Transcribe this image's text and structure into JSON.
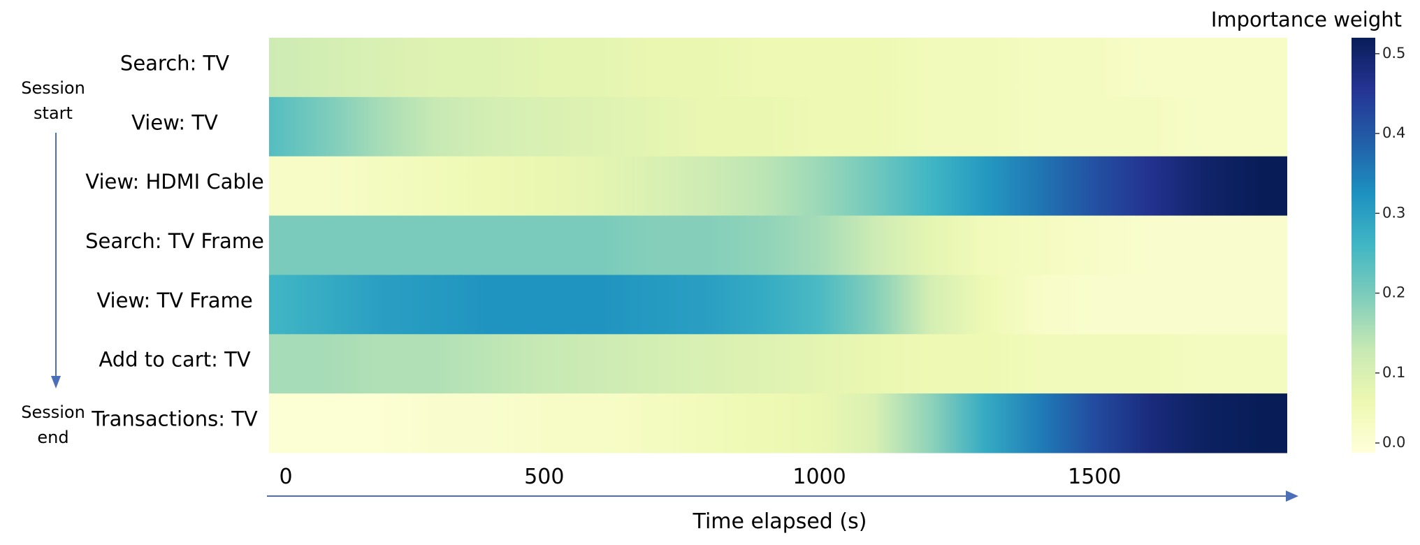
{
  "chart_data": {
    "type": "heatmap",
    "rows": [
      "Search: TV",
      "View: TV",
      "View: HDMI Cable",
      "Search: TV Frame",
      "View: TV Frame",
      "Add to cart: TV",
      "Transactions: TV"
    ],
    "x": [
      0,
      100,
      200,
      300,
      400,
      500,
      600,
      700,
      800,
      900,
      1000,
      1100,
      1200,
      1300,
      1400,
      1500,
      1600,
      1700,
      1800
    ],
    "xlim": [
      0,
      1850
    ],
    "x_ticks": [
      "0",
      "500",
      "1000",
      "1500"
    ],
    "xlabel": "Time elapsed (s)",
    "values": [
      [
        0.12,
        0.11,
        0.1,
        0.09,
        0.09,
        0.08,
        0.08,
        0.07,
        0.07,
        0.06,
        0.06,
        0.06,
        0.05,
        0.05,
        0.04,
        0.04,
        0.03,
        0.03,
        0.03
      ],
      [
        0.24,
        0.2,
        0.16,
        0.13,
        0.11,
        0.1,
        0.09,
        0.08,
        0.07,
        0.07,
        0.06,
        0.06,
        0.05,
        0.05,
        0.04,
        0.04,
        0.04,
        0.03,
        0.03
      ],
      [
        0.03,
        0.03,
        0.04,
        0.05,
        0.06,
        0.07,
        0.08,
        0.1,
        0.12,
        0.14,
        0.17,
        0.21,
        0.26,
        0.31,
        0.36,
        0.41,
        0.46,
        0.5,
        0.52
      ],
      [
        0.2,
        0.2,
        0.2,
        0.2,
        0.2,
        0.2,
        0.2,
        0.19,
        0.19,
        0.18,
        0.16,
        0.12,
        0.08,
        0.05,
        0.04,
        0.03,
        0.02,
        0.02,
        0.02
      ],
      [
        0.26,
        0.28,
        0.3,
        0.31,
        0.32,
        0.32,
        0.32,
        0.31,
        0.3,
        0.28,
        0.25,
        0.19,
        0.11,
        0.06,
        0.03,
        0.02,
        0.02,
        0.02,
        0.02
      ],
      [
        0.16,
        0.16,
        0.15,
        0.15,
        0.14,
        0.13,
        0.12,
        0.11,
        0.1,
        0.09,
        0.08,
        0.07,
        0.06,
        0.06,
        0.05,
        0.05,
        0.05,
        0.04,
        0.04
      ],
      [
        0.01,
        0.01,
        0.01,
        0.02,
        0.02,
        0.03,
        0.03,
        0.04,
        0.05,
        0.06,
        0.07,
        0.1,
        0.18,
        0.28,
        0.35,
        0.42,
        0.48,
        0.51,
        0.52
      ]
    ],
    "vmin": 0.0,
    "vmax": 0.52,
    "colormap": [
      "#ffffd9",
      "#edf8b1",
      "#c7e9b4",
      "#7fcdbb",
      "#41b6c4",
      "#1d91c0",
      "#225ea8",
      "#253494",
      "#081d58"
    ],
    "colorbar": {
      "title": "Importance weight",
      "ticks": [
        0.0,
        0.1,
        0.2,
        0.3,
        0.4,
        0.5
      ],
      "tick_labels": [
        "0.0",
        "0.1",
        "0.2",
        "0.3",
        "0.4",
        "0.5"
      ]
    },
    "session_start_label": "Session\nstart",
    "session_end_label": "Session\nend",
    "arrow_color": "#4a6fb8"
  }
}
